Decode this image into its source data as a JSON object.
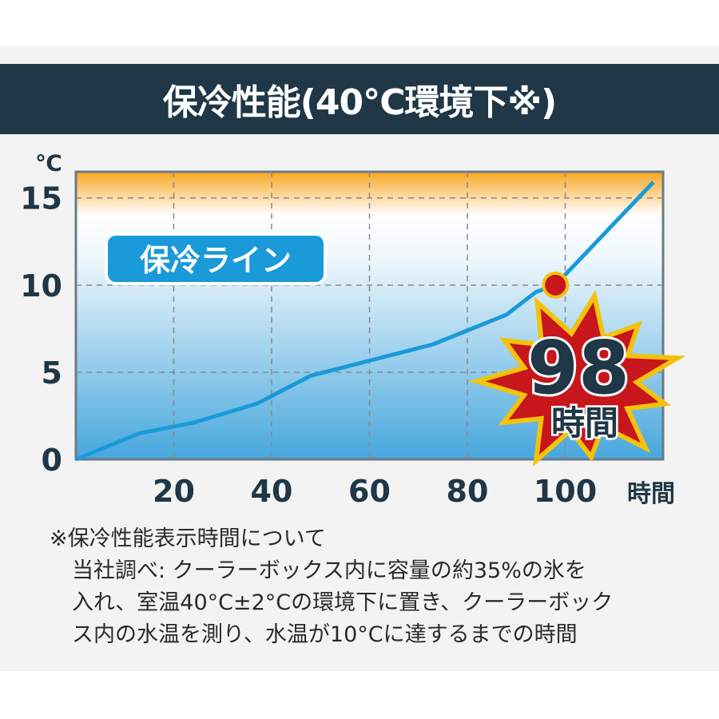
{
  "title": "保冷性能(40℃環境下※)",
  "chart_data": {
    "type": "line",
    "title": "保冷性能(40℃環境下※)",
    "ylabel": "℃",
    "xlabel": "時間",
    "xlim": [
      0,
      120
    ],
    "ylim": [
      0,
      16.5
    ],
    "xticks": [
      20,
      40,
      60,
      80,
      100
    ],
    "yticks": [
      0,
      5,
      10,
      15
    ],
    "grid": true,
    "series": [
      {
        "name": "保冷ライン",
        "color": "#1a9ad8",
        "points": [
          [
            0,
            0
          ],
          [
            13,
            1.5
          ],
          [
            24,
            2.1
          ],
          [
            37,
            3.2
          ],
          [
            48,
            4.8
          ],
          [
            73,
            6.6
          ],
          [
            88,
            8.3
          ],
          [
            94,
            9.6
          ],
          [
            98,
            10
          ],
          [
            118,
            15.9
          ]
        ]
      }
    ],
    "highlight": {
      "x": 98,
      "y": 10,
      "label_value": "98",
      "label_unit": "時間",
      "marker_color": "#c8161d",
      "burst_color": "#c8161d",
      "burst_outline": "#f4c20d"
    },
    "annotation": "保冷ライン"
  },
  "note": {
    "line1": "※保冷性能表示時間について",
    "line2": "当社調べ: クーラーボックス内に容量の約35%の氷を",
    "line3": "入れ、室温40°C±2°Cの環境下に置き、クーラーボック",
    "line4": "ス内の水温を測り、水温が10°Cに達するまでの時間"
  }
}
